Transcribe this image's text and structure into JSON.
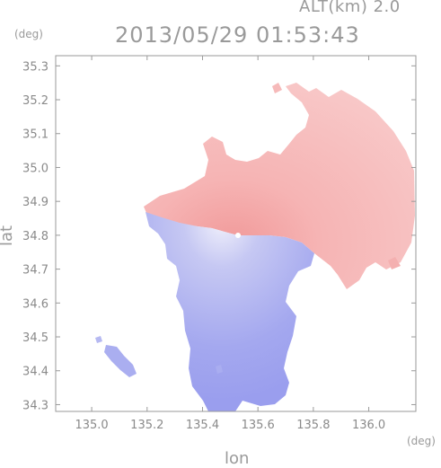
{
  "header": {
    "altitude_label": "ALT(km) 2.0",
    "timestamp": "2013/05/29 01:53:43",
    "lat_unit": "(deg)",
    "lon_unit": "(deg)"
  },
  "axes": {
    "xlabel": "lon",
    "ylabel": "lat",
    "x_ticks": [
      "135.0",
      "135.2",
      "135.4",
      "135.6",
      "135.8",
      "136.0"
    ],
    "x_tick_values": [
      135.0,
      135.2,
      135.4,
      135.6,
      135.8,
      136.0
    ],
    "y_ticks": [
      "35.3",
      "35.2",
      "35.1",
      "35.0",
      "34.9",
      "34.8",
      "34.7",
      "34.6",
      "34.5",
      "34.4",
      "34.3"
    ],
    "y_tick_values": [
      35.3,
      35.2,
      35.1,
      35.0,
      34.9,
      34.8,
      34.7,
      34.6,
      34.5,
      34.4,
      34.3
    ],
    "xlim": [
      134.87,
      136.17
    ],
    "ylim": [
      34.28,
      35.33
    ]
  },
  "radar": {
    "center_lon": 135.52,
    "center_lat": 34.82,
    "approaching_color": "#9fa3f0",
    "receding_color": "#f5a9a9"
  }
}
